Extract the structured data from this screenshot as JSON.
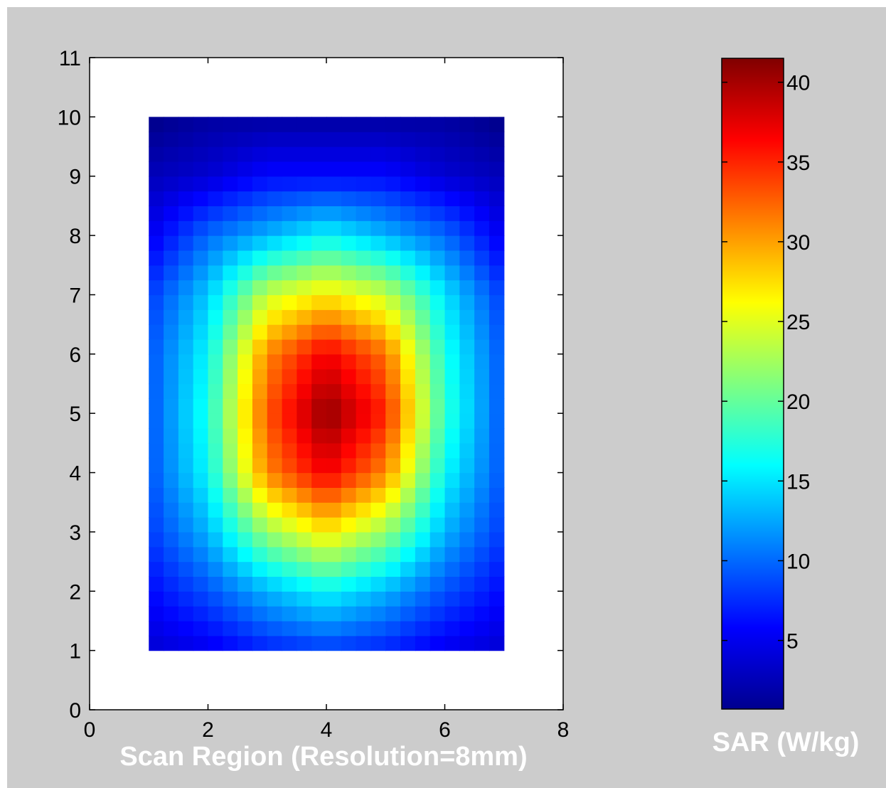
{
  "chart_data": {
    "type": "heatmap",
    "title": "",
    "xlabel": "Scan Region (Resolution=8mm)",
    "ylabel": "",
    "xlim": [
      0,
      8
    ],
    "ylim": [
      0,
      11
    ],
    "xticks": [
      "0",
      "2",
      "4",
      "6",
      "8"
    ],
    "yticks": [
      "0",
      "1",
      "2",
      "3",
      "4",
      "5",
      "6",
      "7",
      "8",
      "9",
      "10",
      "11"
    ],
    "grid": false,
    "colormap": "jet",
    "x": [
      1,
      2,
      3,
      4,
      5,
      6,
      7
    ],
    "y": [
      1,
      2,
      3,
      4,
      5,
      6,
      7,
      8,
      9,
      10
    ],
    "z": [
      [
        4,
        5,
        7,
        8,
        7,
        5,
        4
      ],
      [
        6,
        9,
        13,
        16,
        13,
        9,
        6
      ],
      [
        8,
        13,
        22,
        27,
        22,
        13,
        8
      ],
      [
        9,
        16,
        31,
        37,
        31,
        16,
        9
      ],
      [
        9,
        17,
        33,
        41,
        35,
        18,
        9
      ],
      [
        9,
        16,
        31,
        37,
        32,
        17,
        9
      ],
      [
        8,
        14,
        24,
        27,
        24,
        15,
        8
      ],
      [
        5,
        10,
        13,
        16,
        13,
        10,
        5
      ],
      [
        3,
        4,
        6,
        6,
        6,
        4,
        3
      ],
      [
        1,
        2,
        2,
        2,
        2,
        2,
        1
      ]
    ],
    "colorbar": {
      "label": "SAR (W/kg)",
      "min": 0.7,
      "max": 41.5,
      "ticks": [
        "5",
        "10",
        "15",
        "20",
        "25",
        "30",
        "35",
        "40"
      ]
    }
  }
}
